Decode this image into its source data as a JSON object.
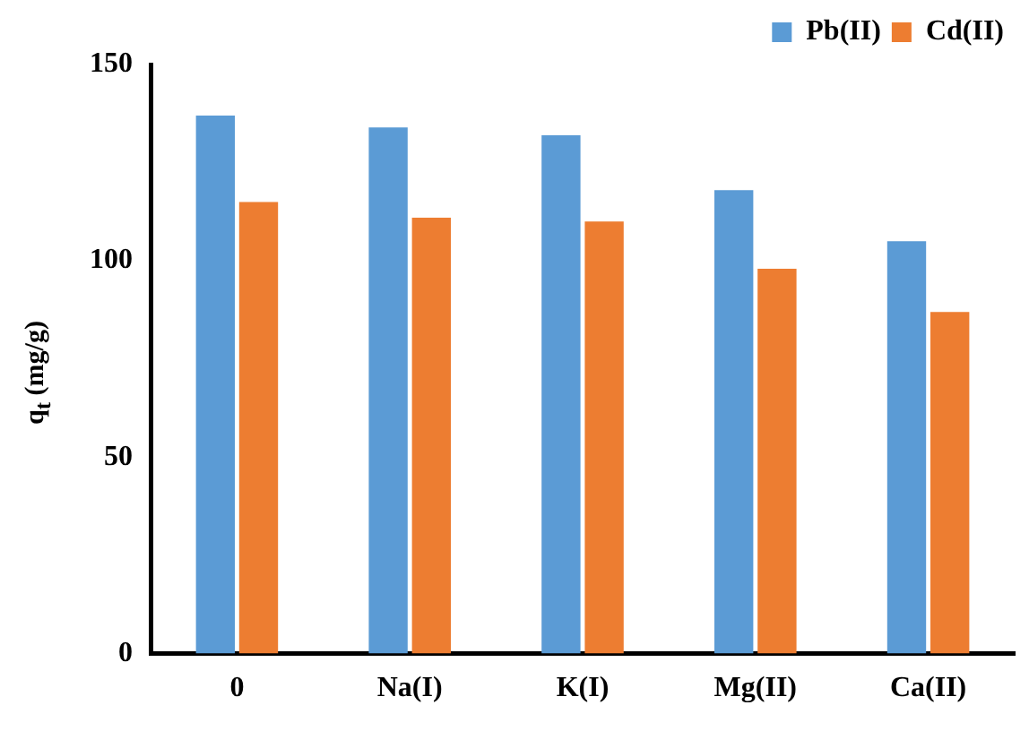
{
  "chart_data": {
    "type": "bar",
    "ylabel": "q$_{t}$ (mg/g)",
    "categories": [
      "0",
      "Na(I)",
      "K(I)",
      "Mg(II)",
      "Ca(II)"
    ],
    "series": [
      {
        "name": "Pb(II)",
        "color": "#5b9bd5",
        "values": [
          137,
          134,
          132,
          118,
          105
        ]
      },
      {
        "name": "Cd(II)",
        "color": "#ed7d31",
        "values": [
          115,
          111,
          110,
          98,
          87
        ]
      }
    ],
    "ylim": [
      0,
      150
    ],
    "yticks": [
      0,
      50,
      100,
      150
    ],
    "grid": false,
    "legend": "top right"
  }
}
